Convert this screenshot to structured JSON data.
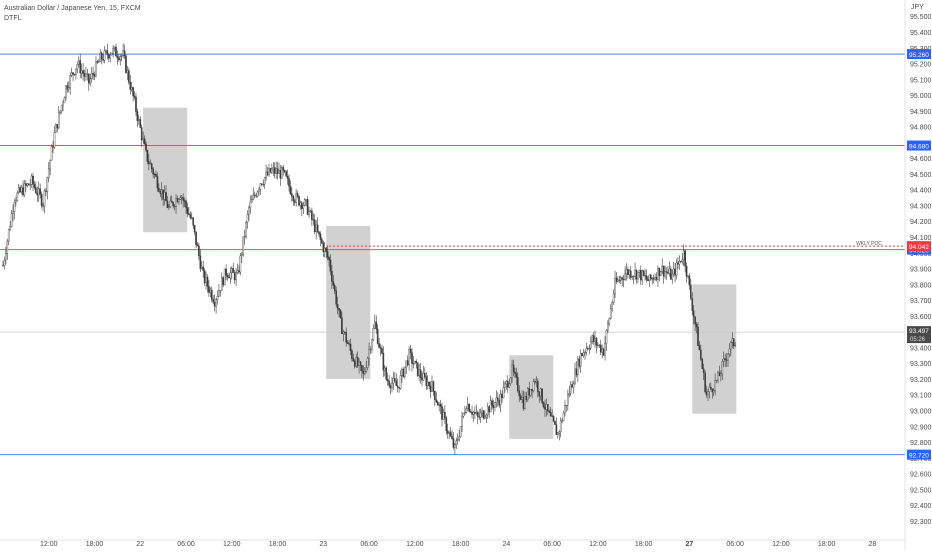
{
  "header": {
    "title": "Australian Dollar / Japanese Yen, 15, FXCM",
    "indicator": "DTFL",
    "currency": "JPY"
  },
  "colors": {
    "background": "#ffffff",
    "candle": "#3b3b3b",
    "level_line": "#4c82e8",
    "level_badge": "#2962ff",
    "poc_badge": "#f23645",
    "poc_line": "#f23645",
    "zone_fill": "#c9c9c9",
    "axis_text": "#4a4a4a",
    "current_badge": "#4a4a4a"
  },
  "chart_data": {
    "type": "candlestick",
    "symbol": "Australian Dollar / Japanese Yen, 15, FXCM",
    "ylim": [
      92.2,
      95.5
    ],
    "y_ticks": [
      95.5,
      95.4,
      95.3,
      95.2,
      95.1,
      95.0,
      94.9,
      94.8,
      94.7,
      94.6,
      94.5,
      94.4,
      94.3,
      94.2,
      94.1,
      94.0,
      93.9,
      93.8,
      93.7,
      93.6,
      93.5,
      93.4,
      93.3,
      93.2,
      93.1,
      93.0,
      92.9,
      92.8,
      92.7,
      92.6,
      92.5,
      92.4,
      92.3
    ],
    "y_tick_labels": [
      "95.500",
      "95.400",
      "95.300",
      "95.200",
      "95.100",
      "95.000",
      "94.900",
      "94.800",
      "94.700",
      "94.600",
      "94.500",
      "94.400",
      "94.300",
      "94.200",
      "94.100",
      "94.000",
      "93.900",
      "93.800",
      "93.700",
      "93.600",
      "93.500",
      "93.400",
      "93.300",
      "93.200",
      "93.100",
      "93.000",
      "92.900",
      "92.800",
      "92.700",
      "92.600",
      "92.500",
      "92.400",
      "92.300"
    ],
    "x_tick_labels": [
      "12:00",
      "18:00",
      "22",
      "06:00",
      "12:00",
      "18:00",
      "23",
      "06:00",
      "12:00",
      "18:00",
      "24",
      "06:00",
      "12:00",
      "18:00",
      "27",
      "06:00",
      "12:00",
      "18:00",
      "28"
    ],
    "x_tick_bold": [
      false,
      false,
      false,
      false,
      false,
      false,
      false,
      false,
      false,
      false,
      false,
      false,
      false,
      false,
      true,
      false,
      false,
      false,
      false
    ],
    "x_tick_slots": [
      8,
      16,
      24,
      32,
      40,
      48,
      56,
      64,
      72,
      80,
      88,
      96,
      104,
      112,
      120,
      128,
      136,
      144,
      152
    ],
    "slot_count": 160,
    "price_path": [
      [
        0,
        93.92
      ],
      [
        2,
        94.35
      ],
      [
        5,
        94.45
      ],
      [
        7,
        94.32
      ],
      [
        9,
        94.75
      ],
      [
        11,
        95.05
      ],
      [
        13,
        95.2
      ],
      [
        15,
        95.08
      ],
      [
        17,
        95.23
      ],
      [
        19,
        95.28
      ],
      [
        21,
        95.25
      ],
      [
        23,
        94.95
      ],
      [
        25,
        94.62
      ],
      [
        27,
        94.45
      ],
      [
        29,
        94.28
      ],
      [
        31,
        94.38
      ],
      [
        33,
        94.2
      ],
      [
        35,
        93.85
      ],
      [
        37,
        93.7
      ],
      [
        39,
        93.88
      ],
      [
        41,
        93.85
      ],
      [
        43,
        94.28
      ],
      [
        45,
        94.45
      ],
      [
        47,
        94.52
      ],
      [
        49,
        94.5
      ],
      [
        51,
        94.35
      ],
      [
        53,
        94.3
      ],
      [
        55,
        94.12
      ],
      [
        57,
        93.95
      ],
      [
        59,
        93.55
      ],
      [
        61,
        93.35
      ],
      [
        63,
        93.22
      ],
      [
        65,
        93.55
      ],
      [
        67,
        93.2
      ],
      [
        69,
        93.15
      ],
      [
        71,
        93.35
      ],
      [
        73,
        93.22
      ],
      [
        75,
        93.15
      ],
      [
        77,
        92.95
      ],
      [
        79,
        92.75
      ],
      [
        81,
        93.05
      ],
      [
        83,
        92.95
      ],
      [
        85,
        93.02
      ],
      [
        87,
        93.08
      ],
      [
        89,
        93.25
      ],
      [
        91,
        93.05
      ],
      [
        93,
        93.2
      ],
      [
        95,
        93.0
      ],
      [
        97,
        92.85
      ],
      [
        99,
        93.12
      ],
      [
        101,
        93.35
      ],
      [
        103,
        93.45
      ],
      [
        105,
        93.38
      ],
      [
        107,
        93.8
      ],
      [
        109,
        93.88
      ],
      [
        111,
        93.87
      ],
      [
        113,
        93.82
      ],
      [
        115,
        93.9
      ],
      [
        117,
        93.85
      ],
      [
        119,
        94.0
      ],
      [
        121,
        93.55
      ],
      [
        123,
        93.1
      ],
      [
        125,
        93.2
      ],
      [
        127,
        93.4
      ],
      [
        128,
        93.44
      ]
    ],
    "levels": [
      {
        "value": 95.26,
        "label": "95.260",
        "style": "solid"
      },
      {
        "value": 94.68,
        "label": "94.680",
        "style": "solid"
      },
      {
        "value": 94.02,
        "label": "94.020",
        "style": "solid"
      },
      {
        "value": 92.72,
        "label": "92.720",
        "style": "solid"
      }
    ],
    "poc": {
      "value": 94.042,
      "label": "94.042",
      "tag": "WKLY POC",
      "start_slot": 57
    },
    "current_price": {
      "value": 93.497,
      "label": "93.497",
      "sub_label": "05:26"
    },
    "zones": [
      {
        "x0": 24.5,
        "x1": 32.2,
        "top": 94.92,
        "bottom": 94.13
      },
      {
        "x0": 56.5,
        "x1": 64.2,
        "top": 94.17,
        "bottom": 93.2
      },
      {
        "x0": 88.5,
        "x1": 96.2,
        "top": 93.35,
        "bottom": 92.82
      },
      {
        "x0": 120.5,
        "x1": 128.2,
        "top": 93.8,
        "bottom": 92.98
      }
    ]
  }
}
